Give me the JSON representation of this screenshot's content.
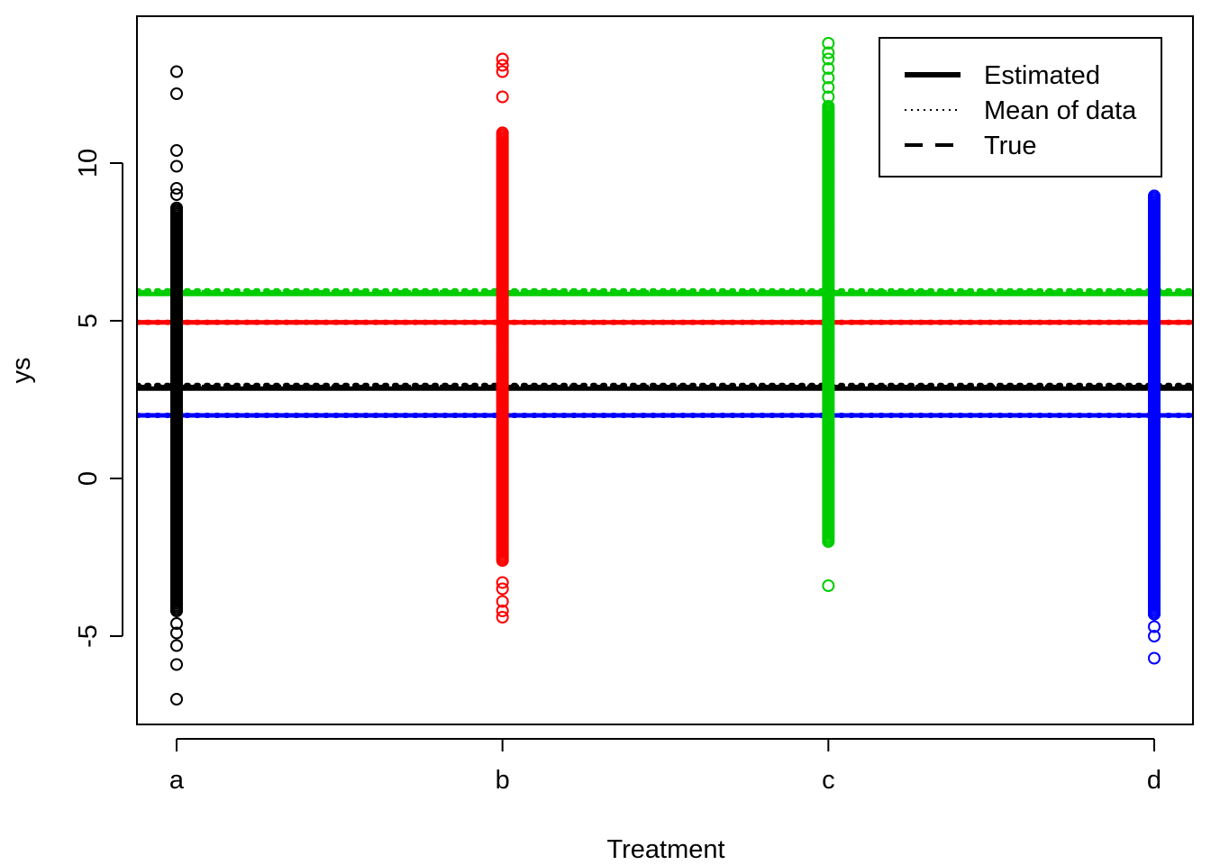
{
  "chart_data": {
    "type": "scatter",
    "xlabel": "Treatment",
    "ylabel": "ys",
    "categories": [
      "a",
      "b",
      "c",
      "d"
    ],
    "ylim": [
      -7.8,
      14.5
    ],
    "yticks": [
      -5,
      0,
      5,
      10
    ],
    "grid": false,
    "legend": {
      "position": "top-right",
      "entries": [
        {
          "label": "Estimated",
          "style": "solid"
        },
        {
          "label": "Mean of data",
          "style": "dotted"
        },
        {
          "label": "True",
          "style": "dashed"
        }
      ]
    },
    "groups": [
      {
        "category": "a",
        "color": "#000000",
        "range": [
          -7.0,
          12.9
        ],
        "core_range": [
          -4.2,
          8.6
        ],
        "points": [
          -7.0,
          -5.9,
          -5.3,
          -4.9,
          -4.6,
          9.0,
          9.2,
          9.9,
          10.4,
          12.2,
          12.9
        ],
        "estimated": 2.85,
        "mean_of_data": 2.95,
        "true": 2.9
      },
      {
        "category": "b",
        "color": "#ff0000",
        "range": [
          -4.4,
          13.3
        ],
        "core_range": [
          -2.6,
          11.0
        ],
        "points": [
          -4.4,
          -4.2,
          -3.9,
          -3.5,
          -3.3,
          12.1,
          12.9,
          13.1,
          13.3
        ],
        "estimated": 4.95,
        "mean_of_data": 4.95,
        "true": 4.95
      },
      {
        "category": "c",
        "color": "#00cd00",
        "range": [
          -3.4,
          13.8
        ],
        "core_range": [
          -2.0,
          11.8
        ],
        "points": [
          -3.4,
          12.1,
          12.4,
          12.7,
          13.0,
          13.3,
          13.5,
          13.8
        ],
        "estimated": 5.85,
        "mean_of_data": 5.95,
        "true": 5.9
      },
      {
        "category": "d",
        "color": "#0000ff",
        "range": [
          -5.7,
          9.0
        ],
        "core_range": [
          -4.3,
          9.0
        ],
        "points": [
          -5.7,
          -5.0,
          -4.7,
          -4.3
        ],
        "estimated": 2.0,
        "mean_of_data": 2.0,
        "true": 2.0
      }
    ]
  }
}
